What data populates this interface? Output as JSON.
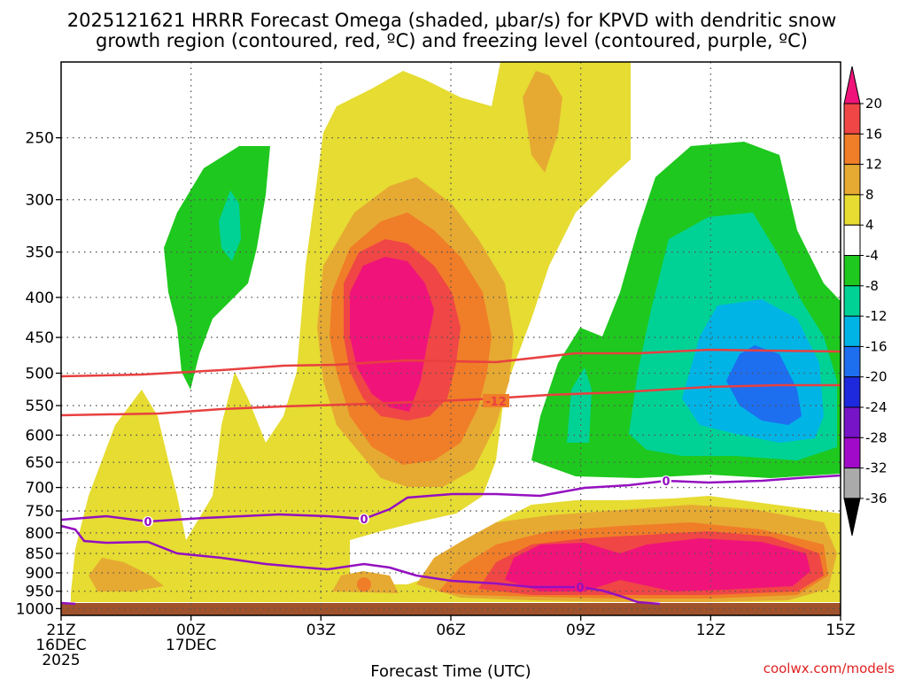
{
  "title": {
    "line1": "2025121621 HRRR Forecast Omega (shaded, μbar/s) for KPVD with dendritic snow",
    "line2": "growth region (contoured, red, ºC) and freezing level (contoured, purple, ºC)"
  },
  "credit": "coolwx.com/models",
  "chart_data": {
    "type": "heatmap",
    "title": "2025121621 HRRR Forecast Omega (shaded, μbar/s) for KPVD with dendritic snow growth region (contoured, red, ºC) and freezing level (contoured, purple, ºC)",
    "xlabel": "Forecast Time (UTC)",
    "ylabel": "",
    "x_ticks": [
      {
        "hour": 0,
        "label": [
          "21Z",
          "16DEC",
          "2025"
        ]
      },
      {
        "hour": 3,
        "label": [
          "00Z",
          "17DEC"
        ]
      },
      {
        "hour": 6,
        "label": [
          "03Z"
        ]
      },
      {
        "hour": 9,
        "label": [
          "06Z"
        ]
      },
      {
        "hour": 12,
        "label": [
          "09Z"
        ]
      },
      {
        "hour": 15,
        "label": [
          "12Z"
        ]
      },
      {
        "hour": 18,
        "label": [
          "15Z"
        ]
      }
    ],
    "xlim": [
      0,
      18
    ],
    "y_ticks": [
      "250",
      "300",
      "350",
      "400",
      "450",
      "500",
      "550",
      "600",
      "650",
      "700",
      "750",
      "800",
      "850",
      "900",
      "950",
      "1000"
    ],
    "ylim_hpa": [
      1020,
      200
    ],
    "colorbar": {
      "levels": [
        "20",
        "16",
        "12",
        "8",
        "4",
        "-4",
        "-8",
        "-12",
        "-16",
        "-20",
        "-24",
        "-28",
        "-32",
        "-36"
      ],
      "colors": [
        "#f0147a",
        "#f04646",
        "#f07d28",
        "#e6aa32",
        "#e6dc32",
        "#ffffff",
        "#1ec81e",
        "#00d296",
        "#00b4e6",
        "#1e6ef0",
        "#1e28dc",
        "#7814c8",
        "#a00ac8",
        "#aaaaaa",
        "#000000"
      ]
    },
    "contours": {
      "dendritic": {
        "color": "#e84040",
        "labels": [
          "-12"
        ]
      },
      "freezing": {
        "color": "#9410c0",
        "labels": [
          "0",
          "0",
          "0",
          "0"
        ]
      }
    },
    "ground_color": "#a0522d"
  }
}
